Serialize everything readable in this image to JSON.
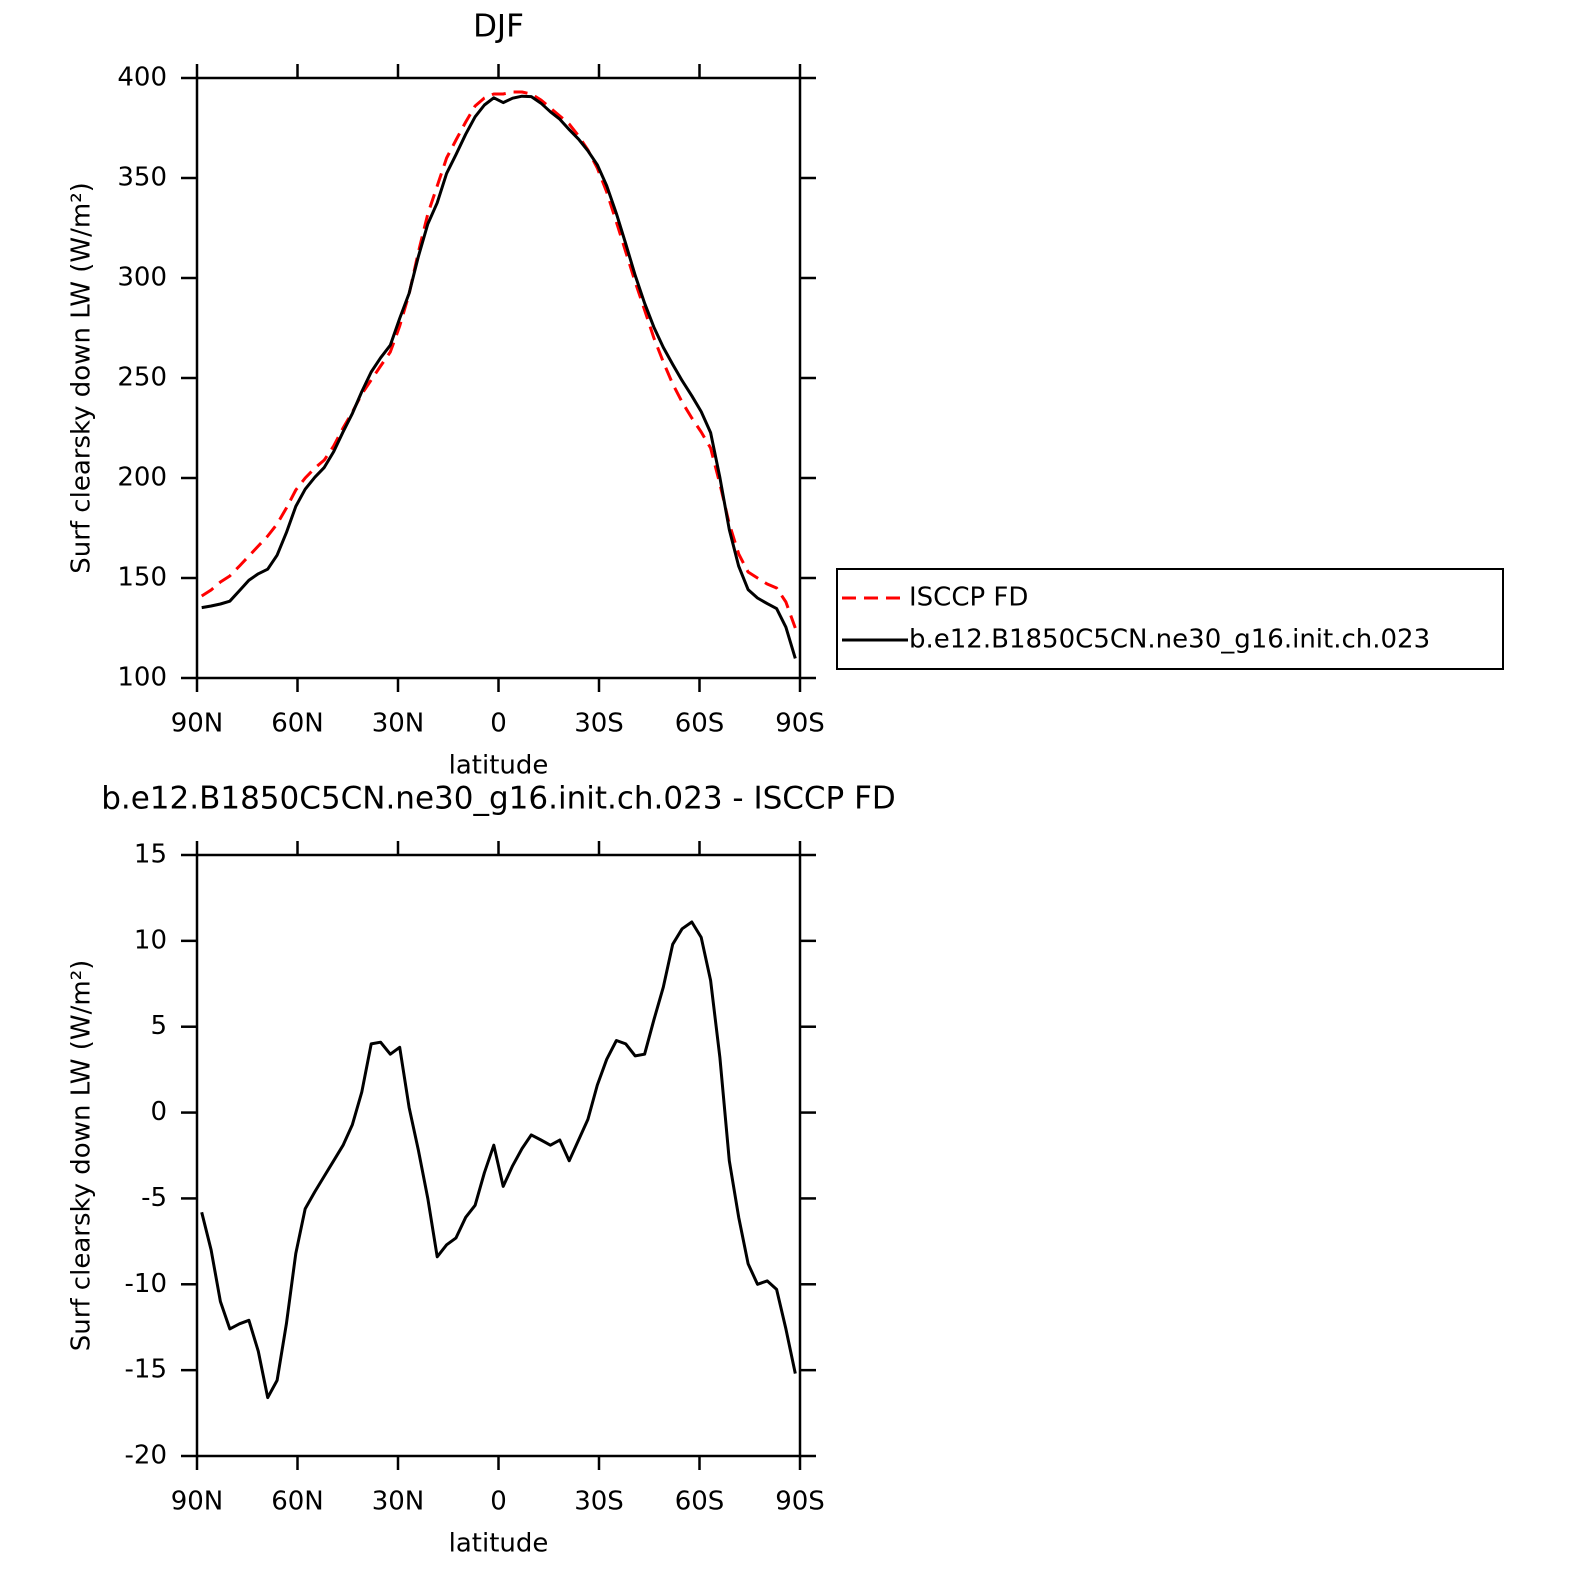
{
  "chart_data": [
    {
      "type": "line",
      "title": "DJF",
      "xlabel": "latitude",
      "ylabel": "Surf clearsky down LW (W/m²)",
      "x": [
        88.6,
        85.8,
        83.0,
        80.2,
        77.3,
        74.5,
        71.7,
        68.9,
        66.1,
        63.3,
        60.5,
        57.7,
        54.8,
        52.0,
        49.2,
        46.4,
        43.6,
        40.8,
        38.0,
        35.2,
        32.3,
        29.5,
        26.7,
        23.9,
        21.1,
        18.3,
        15.5,
        12.7,
        9.8,
        7.0,
        4.2,
        1.4,
        -1.4,
        -4.2,
        -7.0,
        -9.8,
        -12.7,
        -15.5,
        -18.3,
        -21.1,
        -23.9,
        -26.7,
        -29.5,
        -32.3,
        -35.2,
        -38.0,
        -40.8,
        -43.6,
        -46.4,
        -49.2,
        -52.0,
        -54.8,
        -57.7,
        -60.5,
        -63.3,
        -66.1,
        -68.9,
        -71.7,
        -74.5,
        -77.3,
        -80.2,
        -83.0,
        -85.8,
        -88.6
      ],
      "series": [
        {
          "name": "ISCCP FD",
          "color": "#ff0000",
          "dash": true,
          "values": [
            141,
            144,
            148,
            151,
            156,
            161,
            166,
            171,
            177,
            185,
            194,
            200,
            205,
            209,
            216,
            225,
            233,
            242,
            249,
            256,
            263,
            276,
            292,
            313,
            332,
            346,
            360,
            369,
            378,
            386,
            390,
            392,
            392,
            393,
            393,
            392,
            389,
            385,
            381,
            377,
            371,
            364,
            355,
            343,
            328,
            313,
            298,
            284,
            270,
            258,
            247,
            238,
            230,
            223,
            215,
            197,
            177,
            162,
            153,
            150,
            147,
            145,
            138,
            125
          ]
        },
        {
          "name": "b.e12.B1850C5CN.ne30_g16.init.ch.023",
          "color": "#000000",
          "dash": false,
          "values": [
            135.2,
            136.0,
            137.0,
            138.4,
            143.7,
            148.9,
            152.1,
            154.4,
            161.4,
            172.7,
            185.8,
            194.4,
            200.4,
            205.3,
            213.2,
            223.1,
            232.3,
            243.2,
            253.0,
            260.1,
            266.4,
            279.8,
            292.3,
            310.8,
            327.0,
            337.6,
            352.3,
            361.7,
            371.9,
            380.6,
            386.5,
            390.1,
            387.7,
            389.9,
            390.9,
            390.7,
            387.4,
            383.1,
            379.4,
            374.2,
            369.4,
            363.6,
            356.6,
            346.1,
            332.2,
            317.0,
            301.3,
            287.4,
            275.4,
            265.3,
            256.8,
            248.7,
            241.1,
            233.2,
            222.7,
            200.2,
            174.2,
            155.9,
            144.2,
            140.0,
            137.2,
            134.7,
            125.4,
            109.8
          ]
        }
      ],
      "xlim": [
        90,
        -90
      ],
      "xticks": [
        {
          "value": 90,
          "label": "90N"
        },
        {
          "value": 60,
          "label": "60N"
        },
        {
          "value": 30,
          "label": "30N"
        },
        0,
        {
          "value": -30,
          "label": "30S"
        },
        {
          "value": -60,
          "label": "60S"
        },
        {
          "value": -90,
          "label": "90S"
        }
      ],
      "ylim": [
        100,
        400
      ],
      "yticks": [
        100,
        150,
        200,
        250,
        300,
        350,
        400
      ],
      "legend": "right"
    },
    {
      "type": "line",
      "title": "b.e12.B1850C5CN.ne30_g16.init.ch.023 - ISCCP FD",
      "xlabel": "latitude",
      "ylabel": "Surf clearsky down LW (W/m²)",
      "x": [
        88.6,
        85.8,
        83.0,
        80.2,
        77.3,
        74.5,
        71.7,
        68.9,
        66.1,
        63.3,
        60.5,
        57.7,
        54.8,
        52.0,
        49.2,
        46.4,
        43.6,
        40.8,
        38.0,
        35.2,
        32.3,
        29.5,
        26.7,
        23.9,
        21.1,
        18.3,
        15.5,
        12.7,
        9.8,
        7.0,
        4.2,
        1.4,
        -1.4,
        -4.2,
        -7.0,
        -9.8,
        -12.7,
        -15.5,
        -18.3,
        -21.1,
        -23.9,
        -26.7,
        -29.5,
        -32.3,
        -35.2,
        -38.0,
        -40.8,
        -43.6,
        -46.4,
        -49.2,
        -52.0,
        -54.8,
        -57.7,
        -60.5,
        -63.3,
        -66.1,
        -68.9,
        -71.7,
        -74.5,
        -77.3,
        -80.2,
        -83.0,
        -85.8,
        -88.6
      ],
      "series": [
        {
          "color": "#000000",
          "dash": false,
          "values": [
            -5.8,
            -8.0,
            -11.0,
            -12.6,
            -12.3,
            -12.1,
            -13.9,
            -16.6,
            -15.6,
            -12.3,
            -8.2,
            -5.6,
            -4.6,
            -3.7,
            -2.8,
            -1.9,
            -0.7,
            1.2,
            4.0,
            4.1,
            3.4,
            3.8,
            0.3,
            -2.2,
            -5.0,
            -8.4,
            -7.7,
            -7.3,
            -6.1,
            -5.4,
            -3.5,
            -1.9,
            -4.3,
            -3.1,
            -2.1,
            -1.3,
            -1.6,
            -1.9,
            -1.6,
            -2.8,
            -1.6,
            -0.4,
            1.6,
            3.1,
            4.2,
            4.0,
            3.3,
            3.4,
            5.4,
            7.3,
            9.8,
            10.7,
            11.1,
            10.2,
            7.7,
            3.2,
            -2.8,
            -6.1,
            -8.8,
            -10.0,
            -9.8,
            -10.3,
            -12.6,
            -15.2
          ]
        }
      ],
      "xlim": [
        90,
        -90
      ],
      "xticks": [
        {
          "value": 90,
          "label": "90N"
        },
        {
          "value": 60,
          "label": "60N"
        },
        {
          "value": 30,
          "label": "30N"
        },
        0,
        {
          "value": -30,
          "label": "30S"
        },
        {
          "value": -60,
          "label": "60S"
        },
        {
          "value": -90,
          "label": "90S"
        }
      ],
      "ylim": [
        -20,
        15
      ],
      "yticks": [
        -20,
        -15,
        -10,
        -5,
        0,
        5,
        10,
        15
      ]
    }
  ]
}
